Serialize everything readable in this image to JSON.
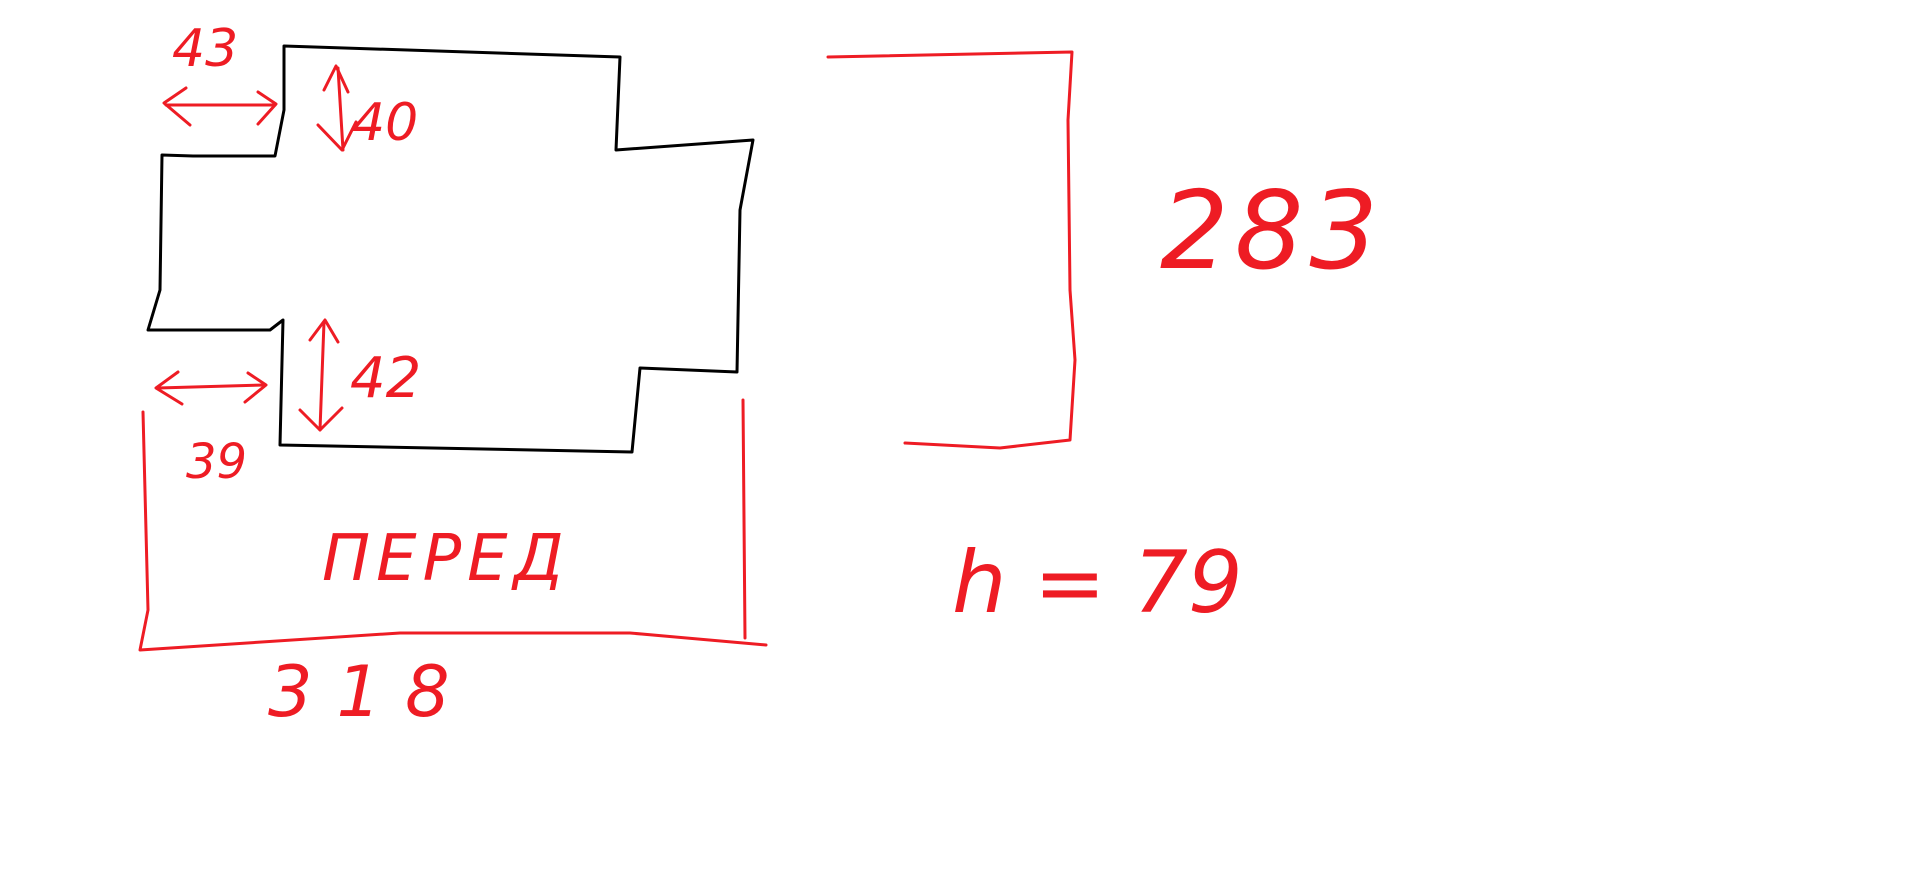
{
  "colors": {
    "outline": "#000000",
    "annotation": "#ee1c24",
    "background": "#ffffff"
  },
  "labels": {
    "dim_top_offset": "43",
    "dim_top_height": "40",
    "dim_bottom_offset": "39",
    "dim_bottom_height": "42",
    "front_label": "ПЕРЕД",
    "dim_width": "318",
    "dim_side": "283",
    "height_note": "h = 79"
  }
}
